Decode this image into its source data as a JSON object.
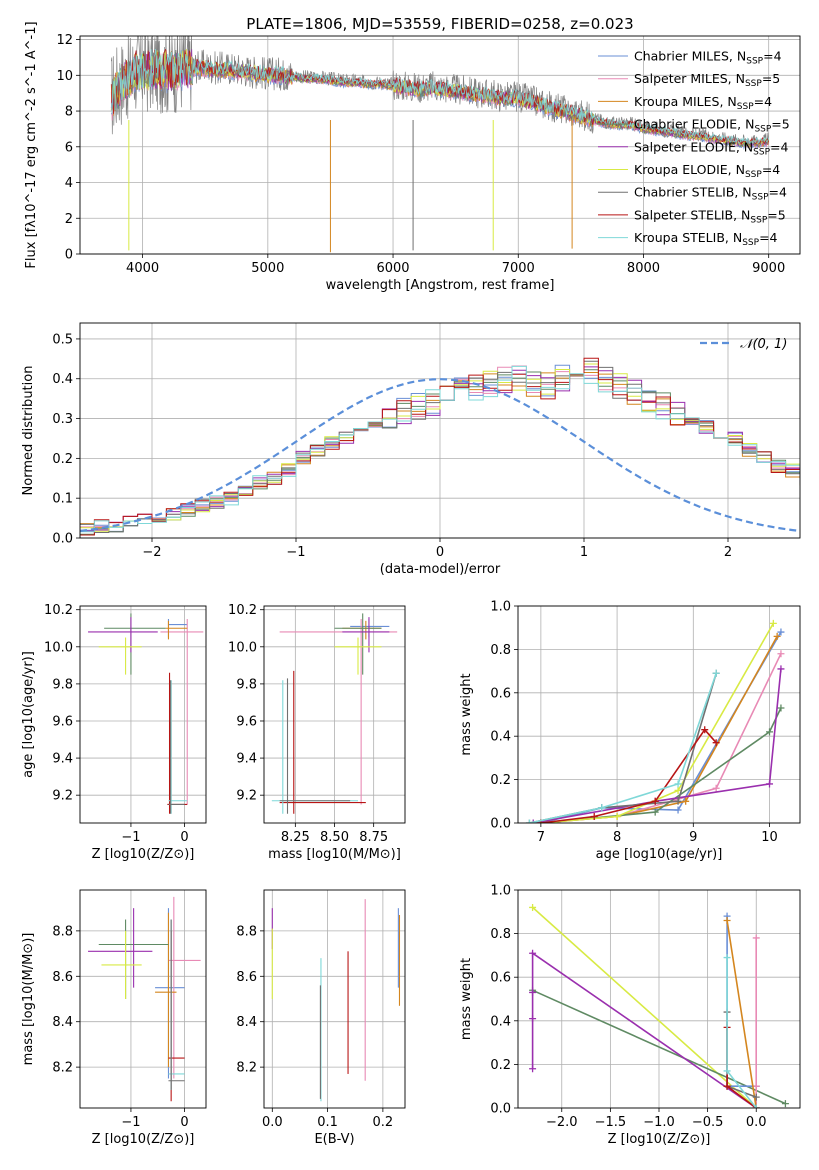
{
  "series_names": [
    "Chabrier MILES, N",
    "Salpeter MILES, N",
    "Kroupa MILES, N",
    "Chabrier ELODIE, N",
    "Salpeter ELODIE, N",
    "Kroupa ELODIE, N",
    "Chabrier STELIB, N",
    "Salpeter STELIB, N",
    "Kroupa STELIB, N"
  ],
  "series_nssp": [
    "4",
    "5",
    "4",
    "5",
    "4",
    "4",
    "4",
    "5",
    "4"
  ],
  "nssp_subscript": "SSP",
  "series_colors": [
    "#6a8fd6",
    "#e88ab5",
    "#d4861f",
    "#5f8a63",
    "#9a2fae",
    "#d8ea44",
    "#707070",
    "#b81515",
    "#7fd8d8"
  ],
  "chart_data": [
    {
      "id": "spectrum",
      "type": "line",
      "title": "PLATE=1806, MJD=53559, FIBERID=0258, z=0.023",
      "xlabel": "wavelength [Angstrom, rest frame]",
      "ylabel": "Flux [fλ10^-17 erg cm^-2 s^-1 A^-1]",
      "xlim": [
        3500,
        9250
      ],
      "ylim": [
        0,
        12.2
      ],
      "xticks": [
        4000,
        5000,
        6000,
        7000,
        8000,
        9000
      ],
      "yticks": [
        0,
        2,
        4,
        6,
        8,
        10,
        12
      ],
      "legend": "top-right",
      "data_color": "#808080",
      "data": {
        "x": [
          3750,
          3800,
          3850,
          3900,
          3950,
          4000,
          4050,
          4100,
          4150,
          4200,
          4300,
          4400,
          4500,
          4600,
          4700,
          4800,
          4900,
          5000,
          5100,
          5200,
          5300,
          5400,
          5500,
          5600,
          5700,
          5800,
          5900,
          6000,
          6100,
          6200,
          6300,
          6400,
          6500,
          6600,
          6700,
          6800,
          6900,
          7000,
          7100,
          7200,
          7300,
          7400,
          7500,
          7600,
          7700,
          7800,
          7900,
          8000,
          8100,
          8200,
          8300,
          8400,
          8500,
          8600,
          8700,
          8800,
          8900,
          9000
        ],
        "y": [
          8.8,
          9.4,
          9.8,
          10.0,
          10.3,
          10.4,
          10.3,
          10.5,
          10.4,
          10.3,
          10.4,
          10.5,
          10.5,
          10.4,
          10.4,
          10.3,
          10.2,
          10.1,
          10.1,
          10.0,
          9.9,
          9.9,
          9.8,
          9.7,
          9.7,
          9.6,
          9.6,
          9.5,
          9.4,
          9.3,
          9.4,
          9.3,
          9.2,
          9.1,
          9.0,
          8.9,
          8.8,
          8.8,
          8.6,
          8.4,
          8.2,
          8.0,
          7.8,
          7.6,
          7.4,
          7.3,
          7.3,
          7.1,
          7.0,
          6.9,
          6.8,
          6.7,
          6.6,
          6.5,
          6.4,
          6.3,
          6.3,
          6.4
        ]
      },
      "model": {
        "x": [
          3750,
          3800,
          3850,
          3900,
          3950,
          4000,
          4050,
          4100,
          4150,
          4200,
          4300,
          4400,
          4500,
          4600,
          4700,
          4800,
          4900,
          5000,
          5100,
          5200,
          5300,
          5400,
          5500,
          5600,
          5700,
          5800,
          5900,
          6000,
          6100,
          6200,
          6300,
          6400,
          6500,
          6600,
          6700,
          6800,
          6900,
          7000,
          7100,
          7200,
          7300,
          7400,
          7500,
          7600,
          7700,
          7800,
          7900,
          8000,
          8100,
          8200,
          8300,
          8400,
          8500,
          8600,
          8700,
          8800,
          8900,
          9000
        ],
        "y": [
          8.6,
          9.2,
          9.6,
          9.9,
          10.2,
          10.3,
          10.2,
          10.4,
          10.3,
          10.2,
          10.3,
          10.4,
          10.4,
          10.3,
          10.3,
          10.2,
          10.1,
          10.0,
          10.0,
          9.9,
          9.8,
          9.8,
          9.7,
          9.6,
          9.6,
          9.5,
          9.5,
          9.4,
          9.3,
          9.2,
          9.3,
          9.2,
          9.1,
          9.0,
          8.9,
          8.8,
          8.7,
          8.7,
          8.5,
          8.3,
          8.1,
          7.9,
          7.7,
          7.5,
          7.3,
          7.2,
          7.2,
          7.0,
          6.9,
          6.8,
          6.7,
          6.6,
          6.5,
          6.4,
          6.3,
          6.2,
          6.2,
          6.3
        ]
      },
      "dips": [
        {
          "series": 5,
          "x": 3890,
          "y": 0.2
        },
        {
          "series": 2,
          "x": 5500,
          "y": 0.1
        },
        {
          "series": 6,
          "x": 6160,
          "y": 0.2
        },
        {
          "series": 5,
          "x": 6800,
          "y": 0.2
        },
        {
          "series": 2,
          "x": 7430,
          "y": 0.3
        }
      ]
    },
    {
      "id": "residuals",
      "type": "step",
      "xlabel": "(data-model)/error",
      "ylabel": "Normed distribution",
      "xlim": [
        -2.5,
        2.5
      ],
      "ylim": [
        0,
        0.54
      ],
      "xticks": [
        -2,
        -1,
        0,
        1,
        2
      ],
      "yticks": [
        0.0,
        0.1,
        0.2,
        0.3,
        0.4,
        0.5
      ],
      "legend": "top-right",
      "normal_label": "𝒩(0, 1)",
      "normal_color": "#5b8fd9",
      "bin_edges_start": -2.5,
      "bin_width": 0.1,
      "hist_values": [
        0.02,
        0.03,
        0.03,
        0.04,
        0.05,
        0.05,
        0.06,
        0.07,
        0.08,
        0.09,
        0.1,
        0.12,
        0.14,
        0.15,
        0.17,
        0.2,
        0.22,
        0.24,
        0.25,
        0.27,
        0.29,
        0.31,
        0.32,
        0.33,
        0.34,
        0.35,
        0.37,
        0.38,
        0.39,
        0.4,
        0.4,
        0.39,
        0.38,
        0.4,
        0.41,
        0.42,
        0.4,
        0.38,
        0.37,
        0.35,
        0.33,
        0.31,
        0.3,
        0.28,
        0.26,
        0.25,
        0.22,
        0.2,
        0.18,
        0.17,
        0.15
      ]
    },
    {
      "id": "age_vs_Z",
      "type": "errorbar",
      "xlabel": "Z [log10(Z/Z⊙)]",
      "ylabel": "age  [log10(age/yr)]",
      "xlim": [
        -1.95,
        0.4
      ],
      "ylim": [
        9.05,
        10.22
      ],
      "xticks": [
        -1,
        0
      ],
      "yticks": [
        9.2,
        9.4,
        9.6,
        9.8,
        10.0,
        10.2
      ],
      "points": [
        {
          "s": 0,
          "x": -0.3,
          "y": 10.12,
          "xl": -0.3,
          "xh": 0.05,
          "yl": 10.05,
          "yh": 10.15
        },
        {
          "s": 1,
          "x": 0.05,
          "y": 10.08,
          "xl": -0.45,
          "xh": 0.35,
          "yl": 9.15,
          "yh": 10.15
        },
        {
          "s": 2,
          "x": -0.3,
          "y": 10.1,
          "xl": -0.35,
          "xh": 0.05,
          "yl": 10.04,
          "yh": 10.14
        },
        {
          "s": 3,
          "x": -1.0,
          "y": 10.1,
          "xl": -1.5,
          "xh": -0.35,
          "yl": 9.85,
          "yh": 10.18
        },
        {
          "s": 4,
          "x": -1.0,
          "y": 10.08,
          "xl": -1.8,
          "xh": -0.5,
          "yl": 9.97,
          "yh": 10.16
        },
        {
          "s": 5,
          "x": -1.1,
          "y": 10.0,
          "xl": -1.6,
          "xh": -0.8,
          "yl": 9.85,
          "yh": 10.05
        },
        {
          "s": 7,
          "x": -0.28,
          "y": 9.15,
          "xl": -0.32,
          "xh": 0.05,
          "yl": 9.1,
          "yh": 9.86
        },
        {
          "s": 8,
          "x": -0.25,
          "y": 9.17,
          "xl": -0.3,
          "xh": 0.05,
          "yl": 9.1,
          "yh": 9.82
        },
        {
          "s": 6,
          "x": -0.26,
          "y": 9.15,
          "xl": -0.3,
          "xh": 0.0,
          "yl": 9.1,
          "yh": 9.82
        }
      ]
    },
    {
      "id": "age_vs_mass",
      "type": "errorbar",
      "xlabel": "mass [log10(M/M⊙)]",
      "ylabel": "",
      "xlim": [
        8.05,
        8.95
      ],
      "ylim": [
        9.05,
        10.22
      ],
      "xticks": [
        8.25,
        8.5,
        8.75
      ],
      "yticks": [
        9.2,
        9.4,
        9.6,
        9.8,
        10.0,
        10.2
      ],
      "points": [
        {
          "s": 0,
          "x": 8.72,
          "y": 10.11,
          "xl": 8.6,
          "xh": 8.85,
          "yl": 10.05,
          "yh": 10.15
        },
        {
          "s": 1,
          "x": 8.67,
          "y": 10.08,
          "xl": 8.15,
          "xh": 8.9,
          "yl": 9.15,
          "yh": 10.15
        },
        {
          "s": 2,
          "x": 8.7,
          "y": 10.1,
          "xl": 8.55,
          "xh": 8.8,
          "yl": 10.04,
          "yh": 10.14
        },
        {
          "s": 3,
          "x": 8.68,
          "y": 10.1,
          "xl": 8.5,
          "xh": 8.8,
          "yl": 9.85,
          "yh": 10.18
        },
        {
          "s": 4,
          "x": 8.72,
          "y": 10.08,
          "xl": 8.55,
          "xh": 8.85,
          "yl": 9.97,
          "yh": 10.16
        },
        {
          "s": 5,
          "x": 8.65,
          "y": 10.0,
          "xl": 8.5,
          "xh": 8.8,
          "yl": 9.85,
          "yh": 10.05
        },
        {
          "s": 7,
          "x": 8.24,
          "y": 9.16,
          "xl": 8.15,
          "xh": 8.7,
          "yl": 9.1,
          "yh": 9.87
        },
        {
          "s": 8,
          "x": 8.17,
          "y": 9.17,
          "xl": 8.1,
          "xh": 8.65,
          "yl": 9.1,
          "yh": 9.82
        },
        {
          "s": 6,
          "x": 8.2,
          "y": 9.17,
          "xl": 8.15,
          "xh": 8.6,
          "yl": 9.1,
          "yh": 9.83
        }
      ]
    },
    {
      "id": "mass_weight_vs_age",
      "type": "line",
      "xlabel": "age  [log10(age/yr)]",
      "ylabel": "mass weight",
      "xlim": [
        6.7,
        10.4
      ],
      "ylim": [
        0,
        1.0
      ],
      "xticks": [
        7,
        8,
        9,
        10
      ],
      "yticks": [
        0.0,
        0.2,
        0.4,
        0.6,
        0.8,
        1.0
      ],
      "series": [
        {
          "s": 0,
          "x": [
            7.0,
            7.8,
            8.8,
            10.15
          ],
          "y": [
            0.0,
            0.07,
            0.06,
            0.88
          ]
        },
        {
          "s": 1,
          "x": [
            7.0,
            8.0,
            9.3,
            10.15
          ],
          "y": [
            0.0,
            0.03,
            0.16,
            0.78
          ]
        },
        {
          "s": 2,
          "x": [
            7.0,
            8.0,
            8.9,
            10.1
          ],
          "y": [
            0.0,
            0.03,
            0.1,
            0.86
          ]
        },
        {
          "s": 3,
          "x": [
            7.0,
            8.5,
            10.0,
            10.15
          ],
          "y": [
            0.0,
            0.05,
            0.42,
            0.53
          ]
        },
        {
          "s": 4,
          "x": [
            6.9,
            8.5,
            10.0,
            10.15
          ],
          "y": [
            0.0,
            0.1,
            0.18,
            0.71
          ]
        },
        {
          "s": 5,
          "x": [
            7.0,
            8.0,
            8.8,
            10.05
          ],
          "y": [
            0.0,
            0.03,
            0.15,
            0.92
          ]
        },
        {
          "s": 6,
          "x": [
            6.85,
            7.8,
            8.8,
            9.3
          ],
          "y": [
            0.0,
            0.07,
            0.1,
            0.69
          ]
        },
        {
          "s": 7,
          "x": [
            7.0,
            7.7,
            8.5,
            9.15,
            9.3
          ],
          "y": [
            0.0,
            0.03,
            0.1,
            0.43,
            0.37
          ]
        },
        {
          "s": 8,
          "x": [
            6.85,
            7.8,
            8.8,
            9.3
          ],
          "y": [
            0.0,
            0.07,
            0.18,
            0.69
          ]
        }
      ]
    },
    {
      "id": "mass_vs_Z",
      "type": "errorbar",
      "xlabel": "Z [log10(Z/Z⊙)]",
      "ylabel": "mass [log10(M/M⊙)]",
      "xlim": [
        -1.95,
        0.4
      ],
      "ylim": [
        8.02,
        8.98
      ],
      "xticks": [
        -1,
        0
      ],
      "yticks": [
        8.2,
        8.4,
        8.6,
        8.8
      ],
      "points": [
        {
          "s": 0,
          "x": -0.3,
          "y": 8.55,
          "xl": -0.55,
          "xh": 0.0,
          "yl": 8.15,
          "yh": 8.9
        },
        {
          "s": 1,
          "x": -0.2,
          "y": 8.67,
          "xl": -0.3,
          "xh": 0.3,
          "yl": 8.15,
          "yh": 8.95
        },
        {
          "s": 2,
          "x": -0.3,
          "y": 8.53,
          "xl": -0.55,
          "xh": -0.15,
          "yl": 8.2,
          "yh": 8.88
        },
        {
          "s": 3,
          "x": -1.1,
          "y": 8.74,
          "xl": -1.6,
          "xh": -0.3,
          "yl": 8.5,
          "yh": 8.85
        },
        {
          "s": 4,
          "x": -0.95,
          "y": 8.71,
          "xl": -1.8,
          "xh": -0.6,
          "yl": 8.55,
          "yh": 8.9
        },
        {
          "s": 5,
          "x": -1.1,
          "y": 8.65,
          "xl": -1.55,
          "xh": -0.8,
          "yl": 8.5,
          "yh": 8.8
        },
        {
          "s": 7,
          "x": -0.25,
          "y": 8.24,
          "xl": -0.3,
          "xh": 0.0,
          "yl": 8.05,
          "yh": 8.8
        },
        {
          "s": 8,
          "x": -0.25,
          "y": 8.17,
          "xl": -0.3,
          "xh": 0.0,
          "yl": 8.1,
          "yh": 8.85
        },
        {
          "s": 6,
          "x": -0.25,
          "y": 8.14,
          "xl": -0.3,
          "xh": 0.0,
          "yl": 8.1,
          "yh": 8.85
        }
      ]
    },
    {
      "id": "mass_vs_ebv",
      "type": "errorbar",
      "xlabel": "E(B-V)",
      "ylabel": "",
      "xlim": [
        -0.015,
        0.24
      ],
      "ylim": [
        8.02,
        8.98
      ],
      "xticks": [
        0.0,
        0.1,
        0.2
      ],
      "yticks": [
        8.2,
        8.4,
        8.6,
        8.8
      ],
      "points": [
        {
          "s": 2,
          "x": 0.23,
          "y": 8.7,
          "xl": 0.23,
          "xh": 0.23,
          "yl": 8.47,
          "yh": 8.87
        },
        {
          "s": 1,
          "x": 0.168,
          "y": 8.5,
          "xl": 0.168,
          "xh": 0.168,
          "yl": 8.14,
          "yh": 8.94
        },
        {
          "s": 7,
          "x": 0.137,
          "y": 8.45,
          "xl": 0.137,
          "xh": 0.137,
          "yl": 8.17,
          "yh": 8.71
        },
        {
          "s": 8,
          "x": 0.088,
          "y": 8.35,
          "xl": 0.088,
          "xh": 0.088,
          "yl": 8.05,
          "yh": 8.68
        },
        {
          "s": 6,
          "x": 0.087,
          "y": 8.3,
          "xl": 0.087,
          "xh": 0.087,
          "yl": 8.06,
          "yh": 8.56
        },
        {
          "s": 4,
          "x": 0.0,
          "y": 8.8,
          "xl": 0.0,
          "xh": 0.0,
          "yl": 8.72,
          "yh": 8.9
        },
        {
          "s": 5,
          "x": 0.0,
          "y": 8.65,
          "xl": 0.0,
          "xh": 0.0,
          "yl": 8.5,
          "yh": 8.81
        },
        {
          "s": 0,
          "x": 0.228,
          "y": 8.75,
          "xl": 0.228,
          "xh": 0.228,
          "yl": 8.55,
          "yh": 8.9
        }
      ]
    },
    {
      "id": "mass_weight_vs_Z",
      "type": "line",
      "xlabel": "Z [log10(Z/Z⊙)]",
      "ylabel": "mass weight",
      "xlim": [
        -2.45,
        0.45
      ],
      "ylim": [
        0,
        1.0
      ],
      "xticks": [
        -2.0,
        -1.5,
        -1.0,
        -0.5,
        0.0
      ],
      "xtick_labels": [
        "−2.0",
        "−1.5",
        "−1.0",
        "−0.5",
        "0.0"
      ],
      "yticks": [
        0.0,
        0.2,
        0.4,
        0.6,
        0.8,
        1.0
      ],
      "series": [
        {
          "s": 5,
          "x": [
            -2.3,
            0.0
          ],
          "y": [
            0.92,
            0.0
          ]
        },
        {
          "s": 3,
          "x": [
            -2.3,
            0.3
          ],
          "y": [
            0.54,
            0.02
          ]
        },
        {
          "s": 4,
          "x": [
            -2.3,
            -2.3,
            -2.3,
            -2.3,
            0.0
          ],
          "y": [
            0.18,
            0.41,
            0.53,
            0.71,
            0.0
          ]
        },
        {
          "s": 0,
          "x": [
            -0.3,
            -0.3,
            0.0
          ],
          "y": [
            0.88,
            0.1,
            0.1
          ]
        },
        {
          "s": 1,
          "x": [
            0.0,
            0.0,
            0.0
          ],
          "y": [
            0.78,
            0.1,
            0.0
          ]
        },
        {
          "s": 2,
          "x": [
            -0.3,
            0.0
          ],
          "y": [
            0.86,
            0.0
          ]
        },
        {
          "s": 6,
          "x": [
            -0.3,
            -0.3,
            0.0
          ],
          "y": [
            0.44,
            0.1,
            0.05
          ]
        },
        {
          "s": 7,
          "x": [
            -0.3,
            -0.3,
            0.0
          ],
          "y": [
            0.37,
            0.1,
            0.0
          ]
        },
        {
          "s": 8,
          "x": [
            -0.3,
            -0.3,
            0.0
          ],
          "y": [
            0.69,
            0.17,
            0.0
          ]
        }
      ]
    }
  ]
}
